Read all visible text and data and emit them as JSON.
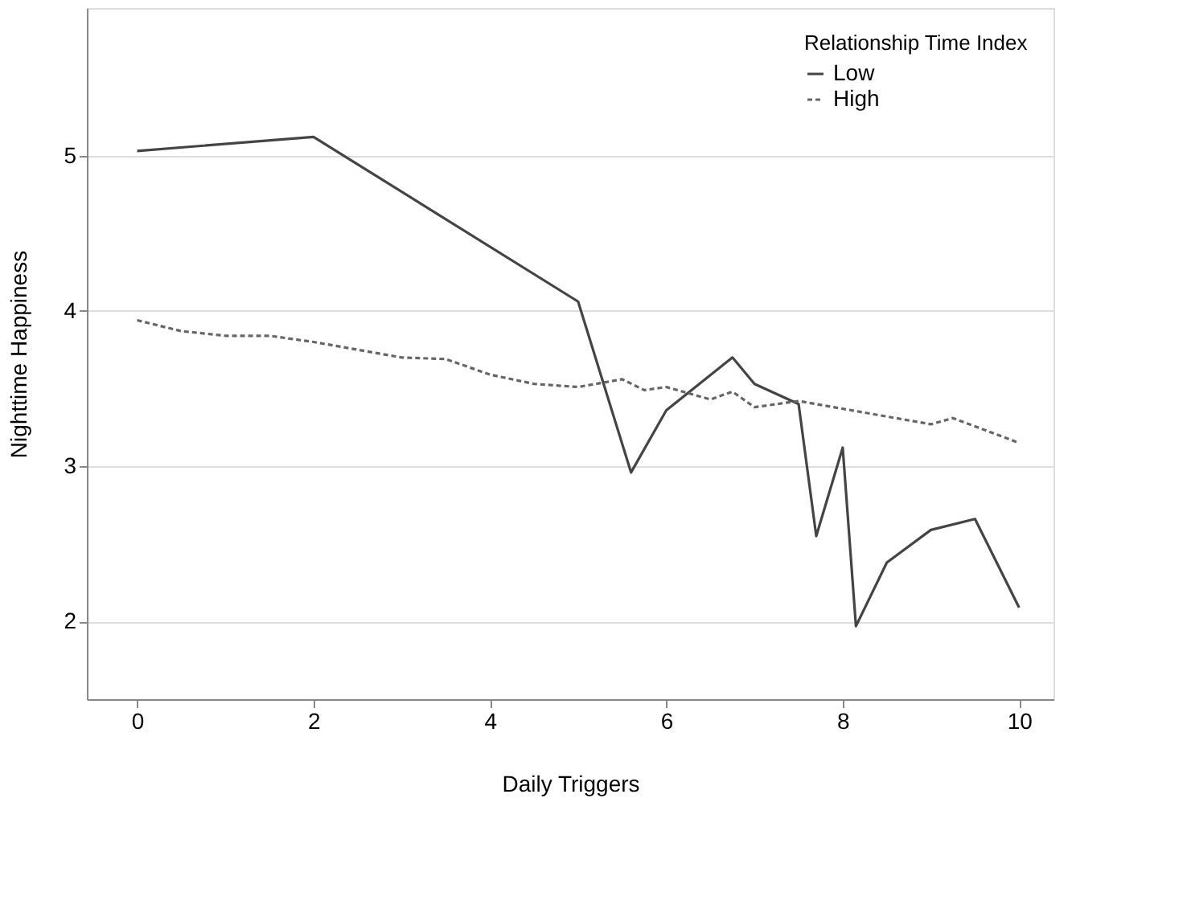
{
  "chart_data": {
    "type": "line",
    "xlabel": "Daily Triggers",
    "ylabel": "Nighttime Happiness",
    "legend_title": "Relationship Time Index",
    "legend": "top right",
    "grid": "y",
    "xlim": [
      -0.57,
      10.39
    ],
    "ylim": [
      1.5,
      5.95
    ],
    "xticks": [
      0,
      2,
      4,
      6,
      8,
      10
    ],
    "yticks": [
      2,
      3,
      4,
      5
    ],
    "series": [
      {
        "name": "Low",
        "color": "#444444",
        "line_style": "solid",
        "x": [
          0,
          2,
          5,
          5.6,
          6,
          6.75,
          7,
          7.5,
          7.7,
          8,
          8.15,
          8.5,
          9,
          9.5,
          10
        ],
        "values": [
          5.03,
          5.12,
          4.06,
          2.96,
          3.36,
          3.7,
          3.53,
          3.4,
          2.55,
          3.12,
          1.97,
          2.38,
          2.59,
          2.66,
          2.09
        ]
      },
      {
        "name": "High",
        "color": "#666666",
        "line_style": "dotted",
        "x": [
          0,
          0.5,
          1,
          1.5,
          2,
          3,
          3.5,
          4,
          4.5,
          5,
          5.5,
          5.75,
          6,
          6.5,
          6.75,
          7,
          7.5,
          9,
          9.25,
          10
        ],
        "values": [
          3.94,
          3.87,
          3.84,
          3.84,
          3.8,
          3.7,
          3.69,
          3.59,
          3.53,
          3.51,
          3.56,
          3.49,
          3.51,
          3.43,
          3.48,
          3.38,
          3.42,
          3.27,
          3.31,
          3.15
        ]
      }
    ]
  }
}
